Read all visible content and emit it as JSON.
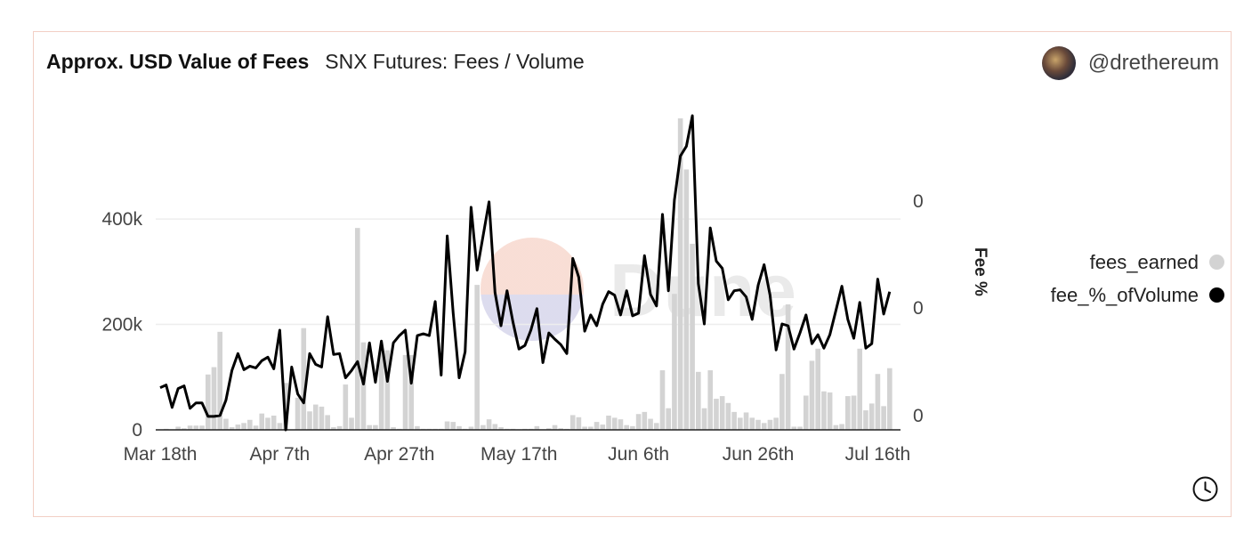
{
  "header": {
    "title": "Approx. USD Value of Fees",
    "subtitle": "SNX Futures: Fees / Volume",
    "author": "@drethereum"
  },
  "legend": {
    "fees_label": "fees_earned",
    "fee_pct_label": "fee_%_ofVolume"
  },
  "colors": {
    "bars": "#d3d3d3",
    "line": "#000000",
    "border": "#f2cfc5",
    "grid": "#eeeeee"
  },
  "chart_data": {
    "type": "bar+line",
    "title": "Approx. USD Value of Fees",
    "subtitle": "SNX Futures: Fees / Volume",
    "xlabel": "",
    "ylabel": "",
    "y2label": "Fee %",
    "x_tick_labels": [
      "Mar 18th",
      "Apr 7th",
      "Apr 27th",
      "May 17th",
      "Jun 6th",
      "Jun 26th",
      "Jul 16th"
    ],
    "x_tick_index": [
      0,
      20,
      40,
      60,
      80,
      100,
      120
    ],
    "ylim": [
      0,
      596000
    ],
    "y_ticks": [
      {
        "value": 0,
        "label": "0"
      },
      {
        "value": 200000,
        "label": "200k"
      },
      {
        "value": 400000,
        "label": "400k"
      }
    ],
    "y2lim": [
      0,
      0.0035
    ],
    "y2_ticks": [
      {
        "value": 0.00016,
        "label": "0"
      },
      {
        "value": 0.00136,
        "label": "0"
      },
      {
        "value": 0.00255,
        "label": "0"
      }
    ],
    "grid": true,
    "legend_position": "right",
    "series": [
      {
        "name": "fees_earned",
        "type": "bar",
        "axis": "left",
        "values": [
          0,
          2000,
          0,
          6000,
          3000,
          8000,
          8000,
          8000,
          105000,
          119000,
          186000,
          21000,
          5000,
          10000,
          13000,
          19000,
          8000,
          31000,
          23000,
          27000,
          13000,
          89000,
          0,
          61000,
          193000,
          35000,
          48000,
          44000,
          28000,
          5000,
          7000,
          86000,
          23000,
          383000,
          166000,
          9000,
          9000,
          151000,
          151000,
          5000,
          2000,
          142000,
          142000,
          7000,
          2000,
          2000,
          2000,
          2000,
          16000,
          15000,
          7000,
          2000,
          6000,
          275000,
          9000,
          20000,
          11000,
          5000,
          2000,
          2000,
          1000,
          2000,
          2000,
          7000,
          0,
          3000,
          9000,
          3000,
          2000,
          28000,
          24000,
          6000,
          6000,
          15000,
          10000,
          27000,
          23000,
          20000,
          9000,
          7000,
          30000,
          34000,
          21000,
          13000,
          113000,
          41000,
          258000,
          591000,
          494000,
          353000,
          110000,
          41000,
          113000,
          59000,
          64000,
          51000,
          34000,
          23000,
          33000,
          23000,
          19000,
          13000,
          19000,
          23000,
          106000,
          238000,
          6000,
          6000,
          65000,
          131000,
          154000,
          73000,
          71000,
          9000,
          11000,
          64000,
          65000,
          154000,
          37000,
          50000,
          106000,
          45000,
          117000
        ]
      },
      {
        "name": "fee_%_ofVolume",
        "type": "line",
        "axis": "right",
        "values": [
          0.00047,
          0.0005,
          0.00025,
          0.00046,
          0.00049,
          0.00024,
          0.0003,
          0.0003,
          0.00015,
          0.00015,
          0.00016,
          0.00033,
          0.00066,
          0.00085,
          0.00067,
          0.00071,
          0.00069,
          0.00077,
          0.00081,
          0.00068,
          0.00111,
          0,
          0.0007,
          0.0004,
          0.0003,
          0.00085,
          0.00073,
          0.0007,
          0.00126,
          0.00084,
          0.00085,
          0.00058,
          0.00066,
          0.00076,
          0.00051,
          0.00097,
          0.00053,
          0.00099,
          0.00054,
          0.00097,
          0.00105,
          0.00111,
          0.00052,
          0.00105,
          0.00107,
          0.00105,
          0.00143,
          0.00061,
          0.00216,
          0.0013,
          0.00058,
          0.00087,
          0.00248,
          0.00178,
          0.00216,
          0.00254,
          0.00153,
          0.00116,
          0.00155,
          0.0012,
          0.0009,
          0.00094,
          0.00111,
          0.00135,
          0.00075,
          0.00108,
          0.00101,
          0.00095,
          0.00085,
          0.00191,
          0.0017,
          0.0011,
          0.00128,
          0.00116,
          0.0014,
          0.00154,
          0.0015,
          0.00128,
          0.00155,
          0.00127,
          0.0013,
          0.00194,
          0.00151,
          0.00138,
          0.0024,
          0.00155,
          0.00256,
          0.00305,
          0.00316,
          0.0035,
          0.00163,
          0.00118,
          0.00225,
          0.00188,
          0.0018,
          0.00145,
          0.00155,
          0.00156,
          0.00148,
          0.00123,
          0.00161,
          0.00184,
          0.0015,
          0.00089,
          0.00118,
          0.00116,
          0.0009,
          0.00108,
          0.00128,
          0.00096,
          0.00106,
          0.00091,
          0.00106,
          0.00133,
          0.0016,
          0.00123,
          0.00102,
          0.00142,
          0.00091,
          0.00096,
          0.00168,
          0.00129,
          0.00154
        ]
      }
    ]
  }
}
